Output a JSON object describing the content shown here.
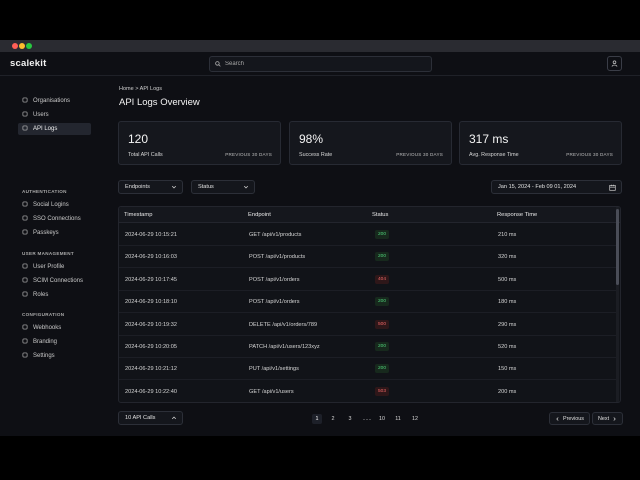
{
  "app": {
    "name": "scalekit"
  },
  "window_controls": {
    "close_color": "#ff5f57",
    "minimize_color": "#febc2e",
    "maximize_color": "#28c840"
  },
  "search": {
    "placeholder": "Search",
    "icon": "search-icon"
  },
  "sidebar": {
    "main_items": [
      {
        "label": "Organisations",
        "icon": "building-icon"
      },
      {
        "label": "Users",
        "icon": "users-icon"
      },
      {
        "label": "API Logs",
        "icon": "logs-icon",
        "active": true
      }
    ],
    "sections": [
      {
        "title": "AUTHENTICATION",
        "items": [
          {
            "label": "Social Logins",
            "icon": "social-icon"
          },
          {
            "label": "SSO Connections",
            "icon": "sso-icon"
          },
          {
            "label": "Passkeys",
            "icon": "key-icon"
          }
        ]
      },
      {
        "title": "USER MANAGEMENT",
        "items": [
          {
            "label": "User Profile",
            "icon": "profile-icon"
          },
          {
            "label": "SCIM Connections",
            "icon": "scim-icon"
          },
          {
            "label": "Roles",
            "icon": "roles-icon"
          }
        ]
      },
      {
        "title": "CONFIGURATION",
        "items": [
          {
            "label": "Webhooks",
            "icon": "webhook-icon"
          },
          {
            "label": "Branding",
            "icon": "branding-icon"
          },
          {
            "label": "Settings",
            "icon": "gear-icon"
          }
        ]
      }
    ]
  },
  "breadcrumb": {
    "home": "Home",
    "sep": ">",
    "current": "API Logs"
  },
  "page_title": "API Logs Overview",
  "stats": [
    {
      "value": "120",
      "label": "Total API Calls",
      "period": "PREVIOUS 30 DAYS"
    },
    {
      "value": "98%",
      "label": "Success Rate",
      "period": "PREVIOUS 30 DAYS"
    },
    {
      "value": "317 ms",
      "label": "Avg. Response Time",
      "period": "PREVIOUS 30 DAYS"
    }
  ],
  "filters": {
    "endpoints": "Endpoints",
    "status": "Status",
    "date_range": "Jan 15, 2024 - Feb 09 01, 2024"
  },
  "table": {
    "headers": [
      "Timestamp",
      "Endpoint",
      "Status",
      "Response Time"
    ],
    "rows": [
      {
        "timestamp": "2024-06-29 10:15:21",
        "endpoint": "GET /api/v1/products",
        "status": "200",
        "time": "210 ms"
      },
      {
        "timestamp": "2024-06-29 10:16:03",
        "endpoint": "POST /api/v1/products",
        "status": "200",
        "time": "320 ms"
      },
      {
        "timestamp": "2024-06-29 10:17:45",
        "endpoint": "POST /api/v1/orders",
        "status": "404",
        "time": "500 ms"
      },
      {
        "timestamp": "2024-06-29 10:18:10",
        "endpoint": "POST /api/v1/orders",
        "status": "200",
        "time": "180 ms"
      },
      {
        "timestamp": "2024-06-29 10:19:32",
        "endpoint": "DELETE /api/v1/orders/789",
        "status": "500",
        "time": "290 ms"
      },
      {
        "timestamp": "2024-06-29 10:20:05",
        "endpoint": "PATCH /api/v1/users/123xyz",
        "status": "200",
        "time": "520 ms"
      },
      {
        "timestamp": "2024-06-29 10:21:12",
        "endpoint": "PUT /api/v1/settings",
        "status": "200",
        "time": "150 ms"
      },
      {
        "timestamp": "2024-06-29 10:22:40",
        "endpoint": "GET /api/v1/users",
        "status": "503",
        "time": "200 ms"
      }
    ]
  },
  "footer": {
    "page_size": "10 API Calls",
    "pages": [
      "1",
      "2",
      "3",
      "......",
      "10",
      "11",
      "12"
    ],
    "current_page": "1",
    "previous": "Previous",
    "next": "Next"
  }
}
